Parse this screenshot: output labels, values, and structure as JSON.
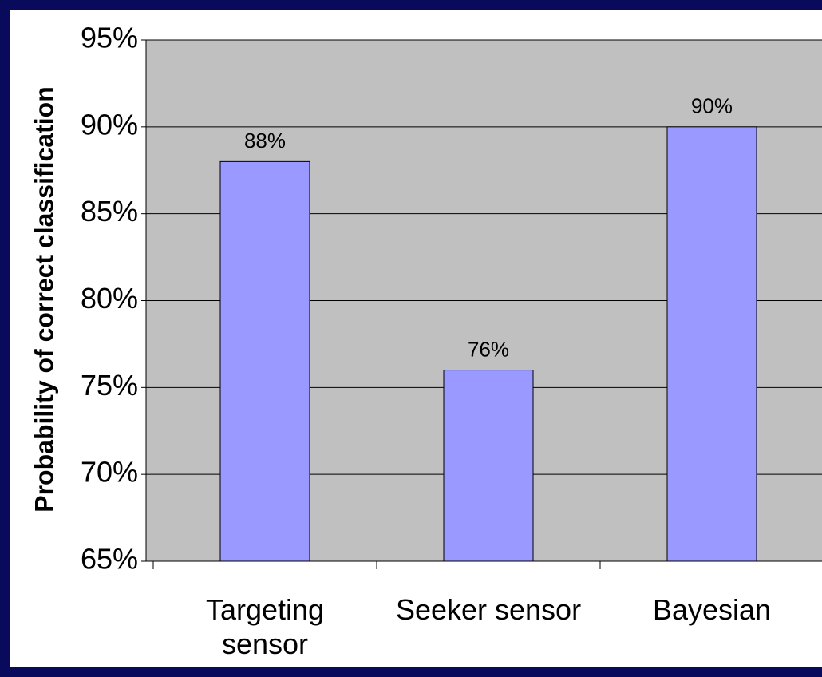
{
  "chart_data": {
    "type": "bar",
    "ylabel": "Probability of correct classification",
    "categories": [
      "Targeting sensor",
      "Seeker sensor",
      "Bayesian"
    ],
    "values": [
      88,
      76,
      90
    ],
    "value_labels": [
      "88%",
      "76%",
      "90%"
    ],
    "color": "#9999ff",
    "ylim": [
      65,
      95
    ],
    "yticks": [
      {
        "value": 65,
        "label": "65%"
      },
      {
        "value": 70,
        "label": "70%"
      },
      {
        "value": 75,
        "label": "75%"
      },
      {
        "value": 80,
        "label": "80%"
      },
      {
        "value": 85,
        "label": "85%"
      },
      {
        "value": 90,
        "label": "90%"
      },
      {
        "value": 95,
        "label": "95%"
      }
    ],
    "grid": true
  }
}
